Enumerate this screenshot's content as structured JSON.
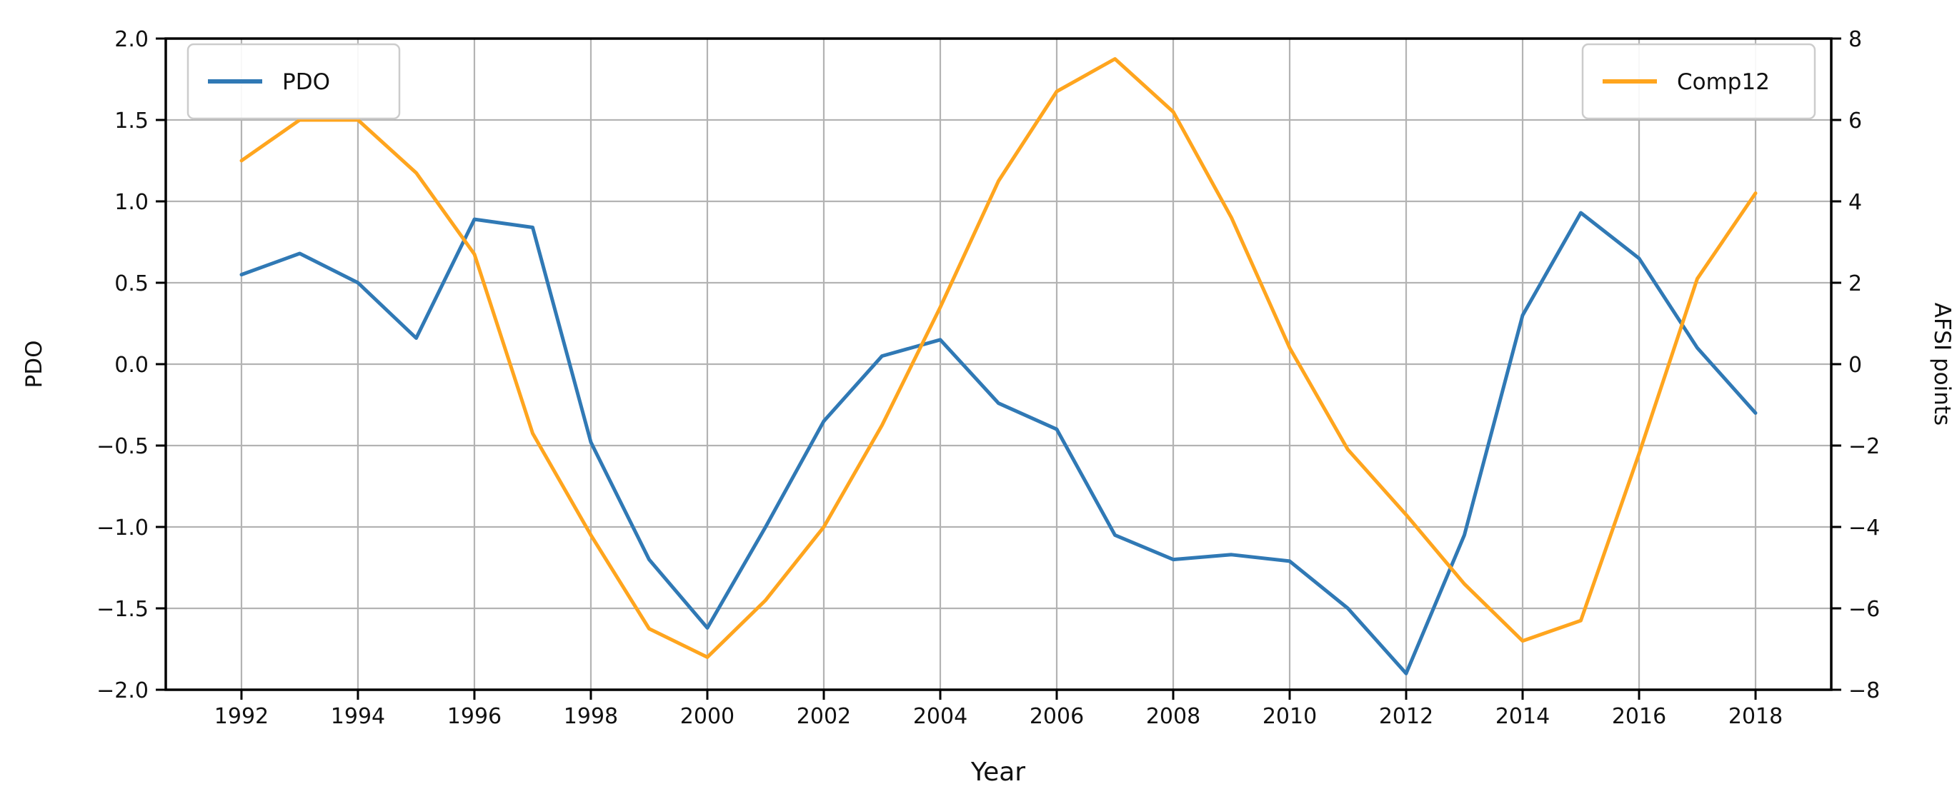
{
  "chart_data": {
    "type": "line",
    "title": "",
    "xlabel": "Year",
    "ylabel_left": "PDO",
    "ylabel_right": "AFSI points",
    "x": [
      1992,
      1993,
      1994,
      1995,
      1996,
      1997,
      1998,
      1999,
      2000,
      2001,
      2002,
      2003,
      2004,
      2005,
      2006,
      2007,
      2008,
      2009,
      2010,
      2011,
      2012,
      2013,
      2014,
      2015,
      2016,
      2017,
      2018
    ],
    "series": [
      {
        "name": "PDO",
        "axis": "left",
        "color": "#3079b5",
        "values": [
          0.55,
          0.68,
          0.5,
          0.16,
          0.89,
          0.84,
          -0.48,
          -1.2,
          -1.62,
          -1.0,
          -0.35,
          0.05,
          0.15,
          -0.24,
          -0.4,
          -1.05,
          -1.2,
          -1.17,
          -1.21,
          -1.5,
          -1.9,
          -1.05,
          0.3,
          0.93,
          0.65,
          0.1,
          -0.3
        ]
      },
      {
        "name": "Comp12",
        "axis": "right",
        "color": "#ffa51e",
        "values": [
          5.0,
          6.0,
          6.0,
          4.7,
          2.7,
          -1.7,
          -4.2,
          -6.5,
          -7.2,
          -5.8,
          -4.0,
          -1.5,
          1.4,
          4.5,
          6.7,
          7.5,
          6.2,
          3.6,
          0.4,
          -2.1,
          -3.7,
          -5.4,
          -6.8,
          -6.3,
          -2.2,
          2.1,
          4.2
        ]
      }
    ],
    "xlim": [
      1990.7,
      2019.3
    ],
    "ylim_left": [
      -2.0,
      2.0
    ],
    "ylim_right": [
      -8,
      8
    ],
    "grid": true,
    "legend_position": [
      "upper left",
      "upper right"
    ],
    "xticks": {
      "values": [
        1992,
        1994,
        1996,
        1998,
        2000,
        2002,
        2004,
        2006,
        2008,
        2010,
        2012,
        2014,
        2016,
        2018
      ],
      "labels": [
        "1992",
        "1994",
        "1996",
        "1998",
        "2000",
        "2002",
        "2004",
        "2006",
        "2008",
        "2010",
        "2012",
        "2014",
        "2016",
        "2018"
      ]
    },
    "yticks_left": {
      "values": [
        2.0,
        1.5,
        1.0,
        0.5,
        0.0,
        -0.5,
        -1.0,
        -1.5,
        -2.0
      ],
      "labels": [
        "2.0",
        "1.5",
        "1.0",
        "0.5",
        "0.0",
        "−0.5",
        "−1.0",
        "−1.5",
        "−2.0"
      ]
    },
    "yticks_right": {
      "values": [
        8,
        6,
        4,
        2,
        0,
        -2,
        -4,
        -6,
        -8
      ],
      "labels": [
        "8",
        "6",
        "4",
        "2",
        "0",
        "−2",
        "−4",
        "−6",
        "−8"
      ]
    }
  },
  "legend_left": {
    "label": "PDO"
  },
  "legend_right": {
    "label": "Comp12"
  },
  "axes": {
    "x_title": "Year",
    "y_left_title": "PDO",
    "y_right_title": "AFSI points"
  },
  "colors": {
    "pdo_line": "#3079b5",
    "comp12_line": "#ffa51e",
    "grid": "#b3b3b3",
    "spine": "#000000",
    "legend_border": "#cccccc",
    "background": "#ffffff"
  }
}
